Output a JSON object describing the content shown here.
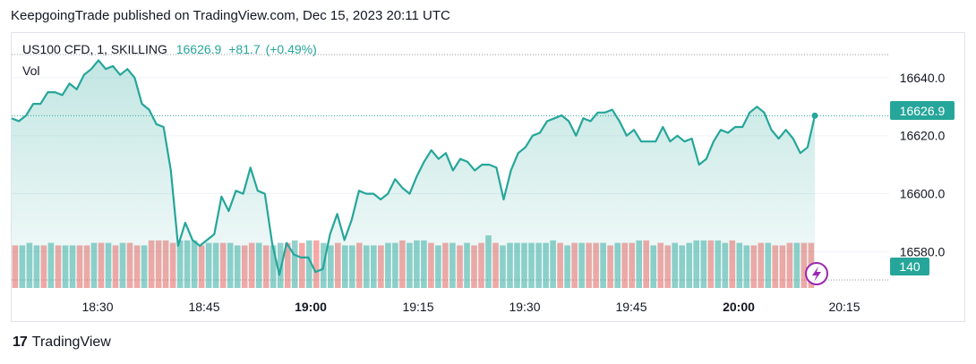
{
  "header": {
    "publisher": "KeepgoingTrade published on TradingView.com, Dec 15, 2023 20:11 UTC"
  },
  "legend": {
    "symbol": "US100 CFD, 1, SKILLING",
    "last": "16626.9",
    "change": "+81.7",
    "change_pct": "(+0.49%)",
    "volume_label": "Vol"
  },
  "footer": {
    "brand": "TradingView",
    "logo_glyph": "17"
  },
  "colors": {
    "up": "#26a69a",
    "down": "#ef5350",
    "line": "#26a69a",
    "grid": "#f0f3fa"
  },
  "chart_data": {
    "type": "area",
    "series": [
      {
        "name": "US100 CFD, 1, SKILLING",
        "values": [
          16626,
          16625,
          16627,
          16631,
          16631,
          16635,
          16635,
          16634,
          16638,
          16636,
          16641,
          16643,
          16646,
          16643,
          16644,
          16641,
          16643,
          16640,
          16631,
          16629,
          16624,
          16623,
          16608,
          16582,
          16590,
          16584,
          16582,
          16584,
          16586,
          16599,
          16594,
          16601,
          16600,
          16609,
          16601,
          16600,
          16583,
          16572,
          16583,
          16579,
          16578,
          16578,
          16573,
          16574,
          16586,
          16593,
          16584,
          16591,
          16601,
          16600,
          16600,
          16598,
          16600,
          16605,
          16602,
          16600,
          16606,
          16611,
          16615,
          16612,
          16614,
          16608,
          16612,
          16611,
          16608,
          16610,
          16610,
          16609,
          16598,
          16608,
          16614,
          16616,
          16620,
          16621,
          16625,
          16626,
          16627,
          16625,
          16620,
          16626,
          16625,
          16628,
          16628,
          16629,
          16625,
          16620,
          16622,
          16618,
          16618,
          16618,
          16623,
          16618,
          16620,
          16618,
          16619,
          16610,
          16612,
          16618,
          16622,
          16621,
          16623,
          16623,
          16628,
          16630,
          16628,
          16622,
          16619,
          16622,
          16619,
          16614,
          16616,
          16626.9
        ]
      }
    ],
    "volumes": [
      17,
      17,
      18,
      17,
      17,
      18,
      17,
      17,
      17,
      17,
      17,
      18,
      18,
      18,
      17,
      18,
      18,
      17,
      17,
      19,
      19,
      19,
      18,
      19,
      19,
      19,
      17,
      18,
      18,
      18,
      18,
      17,
      17,
      18,
      18,
      17,
      17,
      18,
      18,
      19,
      18,
      19,
      19,
      18,
      17,
      18,
      17,
      17,
      18,
      17,
      17,
      17,
      18,
      18,
      19,
      18,
      19,
      19,
      18,
      17,
      18,
      18,
      17,
      18,
      17,
      18,
      21,
      18,
      17,
      18,
      18,
      18,
      18,
      18,
      18,
      19,
      18,
      17,
      18,
      18,
      18,
      18,
      18,
      17,
      18,
      18,
      18,
      19,
      19,
      17,
      18,
      17,
      18,
      17,
      18,
      19,
      19,
      19,
      19,
      18,
      19,
      18,
      17,
      17,
      18,
      18,
      17,
      17,
      18,
      18,
      18,
      18
    ],
    "volume_up": [
      false,
      true,
      true,
      true,
      false,
      true,
      false,
      true,
      true,
      false,
      false,
      true,
      false,
      true,
      false,
      true,
      false,
      false,
      true,
      false,
      false,
      false,
      false,
      true,
      true,
      true,
      false,
      true,
      true,
      false,
      true,
      true,
      false,
      false,
      true,
      false,
      true,
      true,
      false,
      true,
      false,
      true,
      false,
      true,
      true,
      false,
      true,
      true,
      false,
      true,
      true,
      false,
      true,
      true,
      false,
      true,
      true,
      true,
      false,
      true,
      false,
      true,
      false,
      true,
      false,
      false,
      true,
      false,
      true,
      true,
      true,
      true,
      true,
      true,
      true,
      true,
      false,
      true,
      false,
      true,
      false,
      false,
      true,
      false,
      true,
      false,
      false,
      true,
      false,
      true,
      false,
      false,
      true,
      true,
      true,
      true,
      true,
      false,
      true,
      true,
      false,
      true,
      true,
      false,
      false,
      true,
      false,
      false,
      false,
      true,
      false,
      false
    ],
    "x_ticks": [
      "18:30",
      "18:45",
      "19:00",
      "19:15",
      "19:30",
      "19:45",
      "20:00",
      "20:15"
    ],
    "x_ticks_bold": [
      "19:00",
      "20:00"
    ],
    "y_ticks": [
      "16640.0",
      "16620.0",
      "16600.0",
      "16580.0"
    ],
    "y_tick_values": [
      16640,
      16620,
      16600,
      16580
    ],
    "last_price_label": "16626.9",
    "last_volume_label": "140",
    "ylim": [
      16565,
      16652
    ],
    "grid": true
  }
}
